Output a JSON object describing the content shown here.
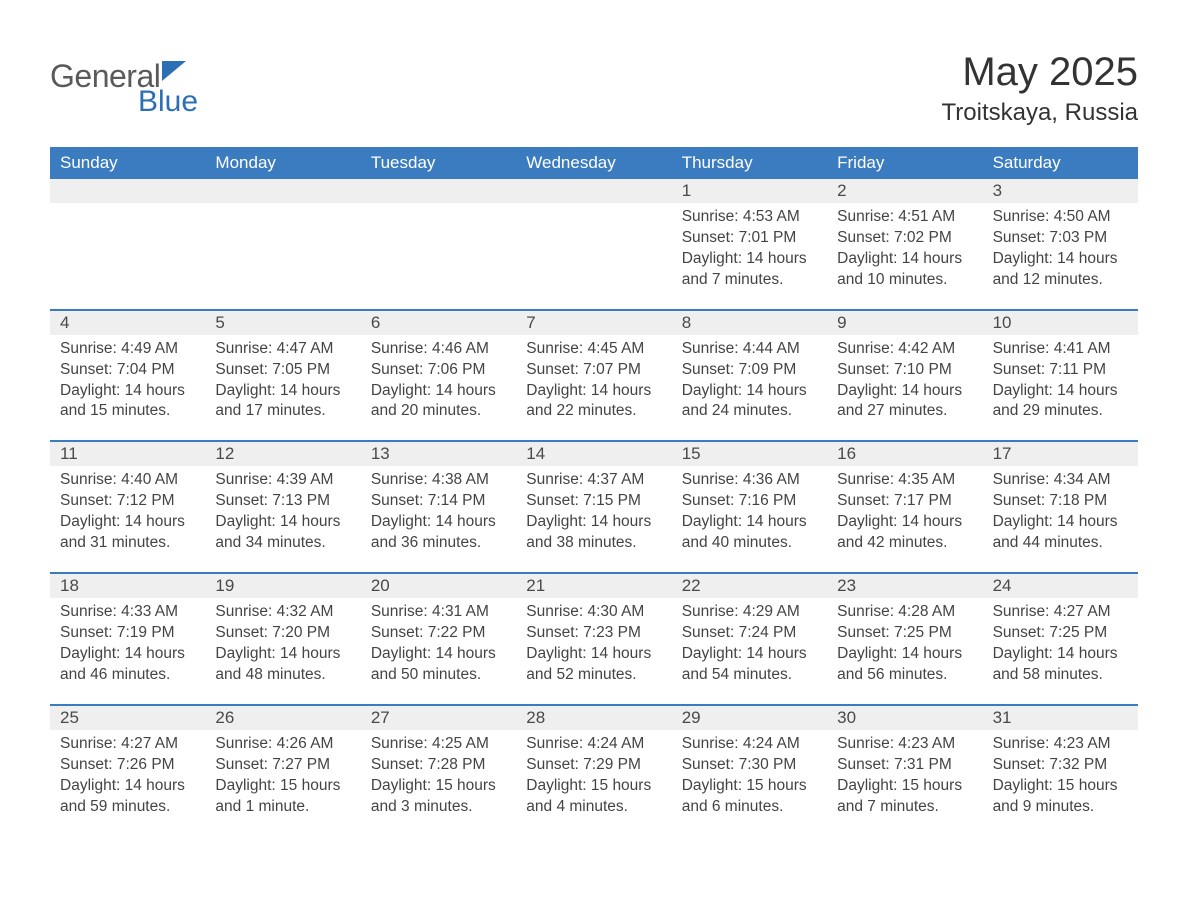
{
  "logo": {
    "text1": "General",
    "text2": "Blue"
  },
  "title": {
    "month": "May 2025",
    "location": "Troitskaya, Russia"
  },
  "colors": {
    "header_bg": "#3b7bbf",
    "header_text": "#ffffff",
    "daynum_bg": "#efefef",
    "border": "#3b7bbf",
    "logo_general": "#5a5a5a",
    "logo_blue": "#2d6fb5",
    "body_text": "#444"
  },
  "day_names": [
    "Sunday",
    "Monday",
    "Tuesday",
    "Wednesday",
    "Thursday",
    "Friday",
    "Saturday"
  ],
  "labels": {
    "sunrise_prefix": "Sunrise: ",
    "sunset_prefix": "Sunset: ",
    "daylight_prefix": "Daylight: "
  },
  "blank_leading": 4,
  "days": [
    {
      "n": 1,
      "sunrise": "4:53 AM",
      "sunset": "7:01 PM",
      "daylight": "14 hours and 7 minutes."
    },
    {
      "n": 2,
      "sunrise": "4:51 AM",
      "sunset": "7:02 PM",
      "daylight": "14 hours and 10 minutes."
    },
    {
      "n": 3,
      "sunrise": "4:50 AM",
      "sunset": "7:03 PM",
      "daylight": "14 hours and 12 minutes."
    },
    {
      "n": 4,
      "sunrise": "4:49 AM",
      "sunset": "7:04 PM",
      "daylight": "14 hours and 15 minutes."
    },
    {
      "n": 5,
      "sunrise": "4:47 AM",
      "sunset": "7:05 PM",
      "daylight": "14 hours and 17 minutes."
    },
    {
      "n": 6,
      "sunrise": "4:46 AM",
      "sunset": "7:06 PM",
      "daylight": "14 hours and 20 minutes."
    },
    {
      "n": 7,
      "sunrise": "4:45 AM",
      "sunset": "7:07 PM",
      "daylight": "14 hours and 22 minutes."
    },
    {
      "n": 8,
      "sunrise": "4:44 AM",
      "sunset": "7:09 PM",
      "daylight": "14 hours and 24 minutes."
    },
    {
      "n": 9,
      "sunrise": "4:42 AM",
      "sunset": "7:10 PM",
      "daylight": "14 hours and 27 minutes."
    },
    {
      "n": 10,
      "sunrise": "4:41 AM",
      "sunset": "7:11 PM",
      "daylight": "14 hours and 29 minutes."
    },
    {
      "n": 11,
      "sunrise": "4:40 AM",
      "sunset": "7:12 PM",
      "daylight": "14 hours and 31 minutes."
    },
    {
      "n": 12,
      "sunrise": "4:39 AM",
      "sunset": "7:13 PM",
      "daylight": "14 hours and 34 minutes."
    },
    {
      "n": 13,
      "sunrise": "4:38 AM",
      "sunset": "7:14 PM",
      "daylight": "14 hours and 36 minutes."
    },
    {
      "n": 14,
      "sunrise": "4:37 AM",
      "sunset": "7:15 PM",
      "daylight": "14 hours and 38 minutes."
    },
    {
      "n": 15,
      "sunrise": "4:36 AM",
      "sunset": "7:16 PM",
      "daylight": "14 hours and 40 minutes."
    },
    {
      "n": 16,
      "sunrise": "4:35 AM",
      "sunset": "7:17 PM",
      "daylight": "14 hours and 42 minutes."
    },
    {
      "n": 17,
      "sunrise": "4:34 AM",
      "sunset": "7:18 PM",
      "daylight": "14 hours and 44 minutes."
    },
    {
      "n": 18,
      "sunrise": "4:33 AM",
      "sunset": "7:19 PM",
      "daylight": "14 hours and 46 minutes."
    },
    {
      "n": 19,
      "sunrise": "4:32 AM",
      "sunset": "7:20 PM",
      "daylight": "14 hours and 48 minutes."
    },
    {
      "n": 20,
      "sunrise": "4:31 AM",
      "sunset": "7:22 PM",
      "daylight": "14 hours and 50 minutes."
    },
    {
      "n": 21,
      "sunrise": "4:30 AM",
      "sunset": "7:23 PM",
      "daylight": "14 hours and 52 minutes."
    },
    {
      "n": 22,
      "sunrise": "4:29 AM",
      "sunset": "7:24 PM",
      "daylight": "14 hours and 54 minutes."
    },
    {
      "n": 23,
      "sunrise": "4:28 AM",
      "sunset": "7:25 PM",
      "daylight": "14 hours and 56 minutes."
    },
    {
      "n": 24,
      "sunrise": "4:27 AM",
      "sunset": "7:25 PM",
      "daylight": "14 hours and 58 minutes."
    },
    {
      "n": 25,
      "sunrise": "4:27 AM",
      "sunset": "7:26 PM",
      "daylight": "14 hours and 59 minutes."
    },
    {
      "n": 26,
      "sunrise": "4:26 AM",
      "sunset": "7:27 PM",
      "daylight": "15 hours and 1 minute."
    },
    {
      "n": 27,
      "sunrise": "4:25 AM",
      "sunset": "7:28 PM",
      "daylight": "15 hours and 3 minutes."
    },
    {
      "n": 28,
      "sunrise": "4:24 AM",
      "sunset": "7:29 PM",
      "daylight": "15 hours and 4 minutes."
    },
    {
      "n": 29,
      "sunrise": "4:24 AM",
      "sunset": "7:30 PM",
      "daylight": "15 hours and 6 minutes."
    },
    {
      "n": 30,
      "sunrise": "4:23 AM",
      "sunset": "7:31 PM",
      "daylight": "15 hours and 7 minutes."
    },
    {
      "n": 31,
      "sunrise": "4:23 AM",
      "sunset": "7:32 PM",
      "daylight": "15 hours and 9 minutes."
    }
  ]
}
